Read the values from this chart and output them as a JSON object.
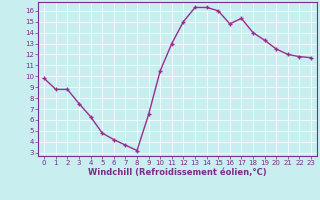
{
  "x": [
    0,
    1,
    2,
    3,
    4,
    5,
    6,
    7,
    8,
    9,
    10,
    11,
    12,
    13,
    14,
    15,
    16,
    17,
    18,
    19,
    20,
    21,
    22,
    23
  ],
  "y": [
    9.8,
    8.8,
    8.8,
    7.5,
    6.3,
    4.8,
    4.2,
    3.7,
    3.2,
    6.5,
    10.5,
    13.0,
    15.0,
    16.3,
    16.3,
    16.0,
    14.8,
    15.3,
    14.0,
    13.3,
    12.5,
    12.0,
    11.8,
    11.7
  ],
  "line_color": "#9b2d8e",
  "marker": "+",
  "marker_size": 3,
  "linewidth": 1.0,
  "markeredgewidth": 1.0,
  "xlabel": "Windchill (Refroidissement éolien,°C)",
  "xlabel_fontsize": 6,
  "xlim": [
    -0.5,
    23.5
  ],
  "ylim": [
    2.7,
    16.8
  ],
  "yticks": [
    3,
    4,
    5,
    6,
    7,
    8,
    9,
    10,
    11,
    12,
    13,
    14,
    15,
    16
  ],
  "xticks": [
    0,
    1,
    2,
    3,
    4,
    5,
    6,
    7,
    8,
    9,
    10,
    11,
    12,
    13,
    14,
    15,
    16,
    17,
    18,
    19,
    20,
    21,
    22,
    23
  ],
  "bg_color": "#c8eef0",
  "grid_color": "#ffffff",
  "tick_color": "#7b2d8b",
  "tick_fontsize": 5,
  "grid_linewidth": 0.5,
  "xlabel_fontweight": "bold"
}
